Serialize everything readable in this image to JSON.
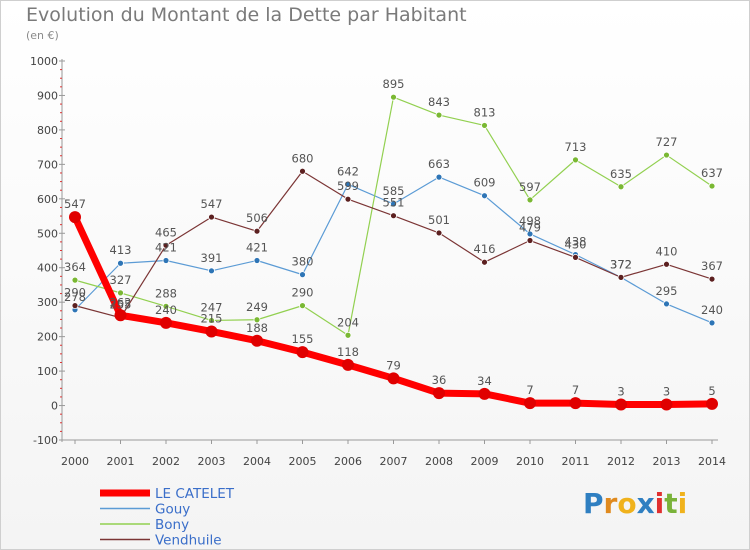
{
  "chart_data": {
    "type": "line",
    "title": "Evolution du Montant de la Dette par Habitant",
    "subtitle": "(en €)",
    "x": [
      "2000",
      "2001",
      "2002",
      "2003",
      "2004",
      "2005",
      "2006",
      "2007",
      "2008",
      "2009",
      "2010",
      "2011",
      "2012",
      "2013",
      "2014"
    ],
    "yticks": [
      1000,
      900,
      800,
      700,
      600,
      500,
      400,
      300,
      200,
      100,
      0,
      -100
    ],
    "ylim": [
      -100,
      1000
    ],
    "grid": false,
    "legend_position": "bottom-left",
    "series": [
      {
        "name": "Gouy",
        "color": "#5b9bd5",
        "marker": "#2e75b6",
        "width": 1.2,
        "values": [
          278,
          413,
          421,
          391,
          421,
          380,
          642,
          585,
          663,
          609,
          498,
          438,
          372,
          295,
          240
        ],
        "labels": [
          "278",
          "413",
          "421",
          "391",
          "421",
          "380",
          "642",
          "585",
          "663",
          "609",
          "498",
          "438",
          "372",
          "295",
          "240"
        ]
      },
      {
        "name": "Bony",
        "color": "#92d050",
        "marker": "#7ab833",
        "width": 1.2,
        "values": [
          364,
          327,
          288,
          247,
          249,
          290,
          204,
          895,
          843,
          813,
          597,
          713,
          635,
          727,
          637
        ],
        "labels": [
          "364",
          "327",
          "288",
          "247",
          "249",
          "290",
          "204",
          "895",
          "843",
          "813",
          "597",
          "713",
          "635",
          "727",
          "637"
        ]
      },
      {
        "name": "Vendhuile",
        "color": "#7b3535",
        "marker": "#5c2020",
        "width": 1.2,
        "values": [
          290,
          255,
          465,
          547,
          506,
          680,
          599,
          551,
          501,
          416,
          479,
          430,
          372,
          410,
          367
        ],
        "labels": [
          "290",
          "255",
          "465",
          "547",
          "506",
          "680",
          "599",
          "551",
          "501",
          "416",
          "479",
          "430",
          "372",
          "410",
          "367"
        ]
      },
      {
        "name": "LE CATELET",
        "color": "#ff0000",
        "marker": "#e00000",
        "width": 7,
        "values": [
          547,
          262,
          240,
          215,
          188,
          155,
          118,
          79,
          36,
          34,
          7,
          7,
          3,
          3,
          5
        ],
        "labels": [
          "547",
          "262",
          "240",
          "215",
          "188",
          "155",
          "118",
          "79",
          "36",
          "34",
          "7",
          "7",
          "3",
          "3",
          "5"
        ]
      }
    ],
    "legend_order": [
      "LE CATELET",
      "Gouy",
      "Bony",
      "Vendhuile"
    ]
  },
  "logo_text": [
    "P",
    "r",
    "o",
    "x",
    "i",
    "t",
    "i"
  ]
}
